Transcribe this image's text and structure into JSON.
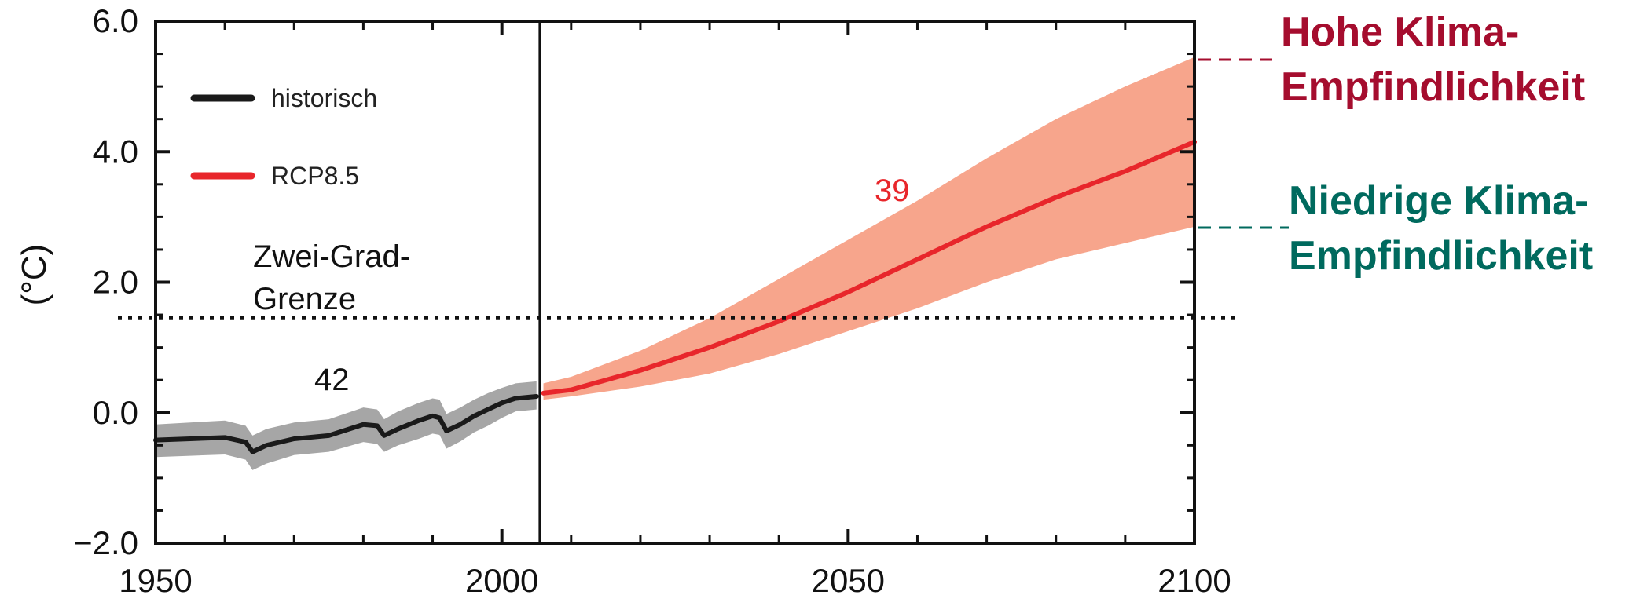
{
  "chart_data": {
    "type": "area",
    "xlabel": "",
    "ylabel": "(°C)",
    "xlim": [
      1950,
      2100
    ],
    "ylim": [
      -2.0,
      6.0
    ],
    "xticks": [
      "1950",
      "2000",
      "2050",
      "2100"
    ],
    "yticks": [
      "−2.0",
      "0.0",
      "2.0",
      "4.0",
      "6.0"
    ],
    "grid": false,
    "legend_position": "top-left",
    "colors": {
      "historisch": "#1a1a1a",
      "historisch_band": "#a6a6a6",
      "rcp": "#e8262b",
      "rcp_band": "#f7a58c",
      "high_label": "#a50d2e",
      "low_label": "#006a5e"
    },
    "series": [
      {
        "name": "historisch",
        "x": [
          1950,
          1955,
          1960,
          1963,
          1964,
          1966,
          1970,
          1975,
          1980,
          1982,
          1983,
          1985,
          1988,
          1990,
          1991,
          1992,
          1994,
          1996,
          1998,
          2000,
          2002,
          2005
        ],
        "y": [
          -0.42,
          -0.4,
          -0.38,
          -0.45,
          -0.6,
          -0.5,
          -0.4,
          -0.35,
          -0.18,
          -0.2,
          -0.35,
          -0.25,
          -0.12,
          -0.05,
          -0.08,
          -0.28,
          -0.18,
          -0.05,
          0.05,
          0.15,
          0.22,
          0.25
        ],
        "lower": [
          -0.68,
          -0.66,
          -0.64,
          -0.72,
          -0.88,
          -0.78,
          -0.65,
          -0.6,
          -0.45,
          -0.48,
          -0.6,
          -0.5,
          -0.4,
          -0.32,
          -0.34,
          -0.55,
          -0.44,
          -0.3,
          -0.2,
          -0.08,
          0.02,
          0.05
        ],
        "upper": [
          -0.18,
          -0.15,
          -0.12,
          -0.2,
          -0.35,
          -0.25,
          -0.15,
          -0.1,
          0.08,
          0.05,
          -0.1,
          0.02,
          0.15,
          0.22,
          0.2,
          -0.02,
          0.08,
          0.2,
          0.3,
          0.38,
          0.45,
          0.48
        ]
      },
      {
        "name": "RCP8.5",
        "x": [
          2006,
          2010,
          2020,
          2030,
          2040,
          2050,
          2060,
          2070,
          2080,
          2090,
          2100
        ],
        "y": [
          0.3,
          0.35,
          0.65,
          1.0,
          1.4,
          1.85,
          2.35,
          2.85,
          3.3,
          3.7,
          4.15
        ],
        "lower": [
          0.2,
          0.25,
          0.4,
          0.6,
          0.9,
          1.25,
          1.6,
          2.0,
          2.35,
          2.6,
          2.85
        ],
        "upper": [
          0.45,
          0.55,
          0.95,
          1.45,
          2.05,
          2.65,
          3.25,
          3.9,
          4.5,
          5.0,
          5.45
        ]
      }
    ],
    "reference_lines": [
      {
        "orientation": "horizontal",
        "y": 1.45,
        "style": "dotted",
        "label": "Zwei-Grad-\nGrenze"
      },
      {
        "orientation": "vertical",
        "x": 2005.5,
        "style": "solid"
      }
    ],
    "annotations": {
      "hist_count": "42",
      "rcp_count": "39",
      "two_degree_line1": "Zwei-Grad-",
      "two_degree_line2": "Grenze"
    },
    "side_labels": {
      "high_line1": "Hohe Klima-",
      "high_line2": "Empfindlichkeit",
      "low_line1": "Niedrige Klima-",
      "low_line2": "Empfindlichkeit"
    },
    "legend": [
      {
        "label": "historisch",
        "color": "#1a1a1a"
      },
      {
        "label": "RCP8.5",
        "color": "#e8262b"
      }
    ]
  }
}
